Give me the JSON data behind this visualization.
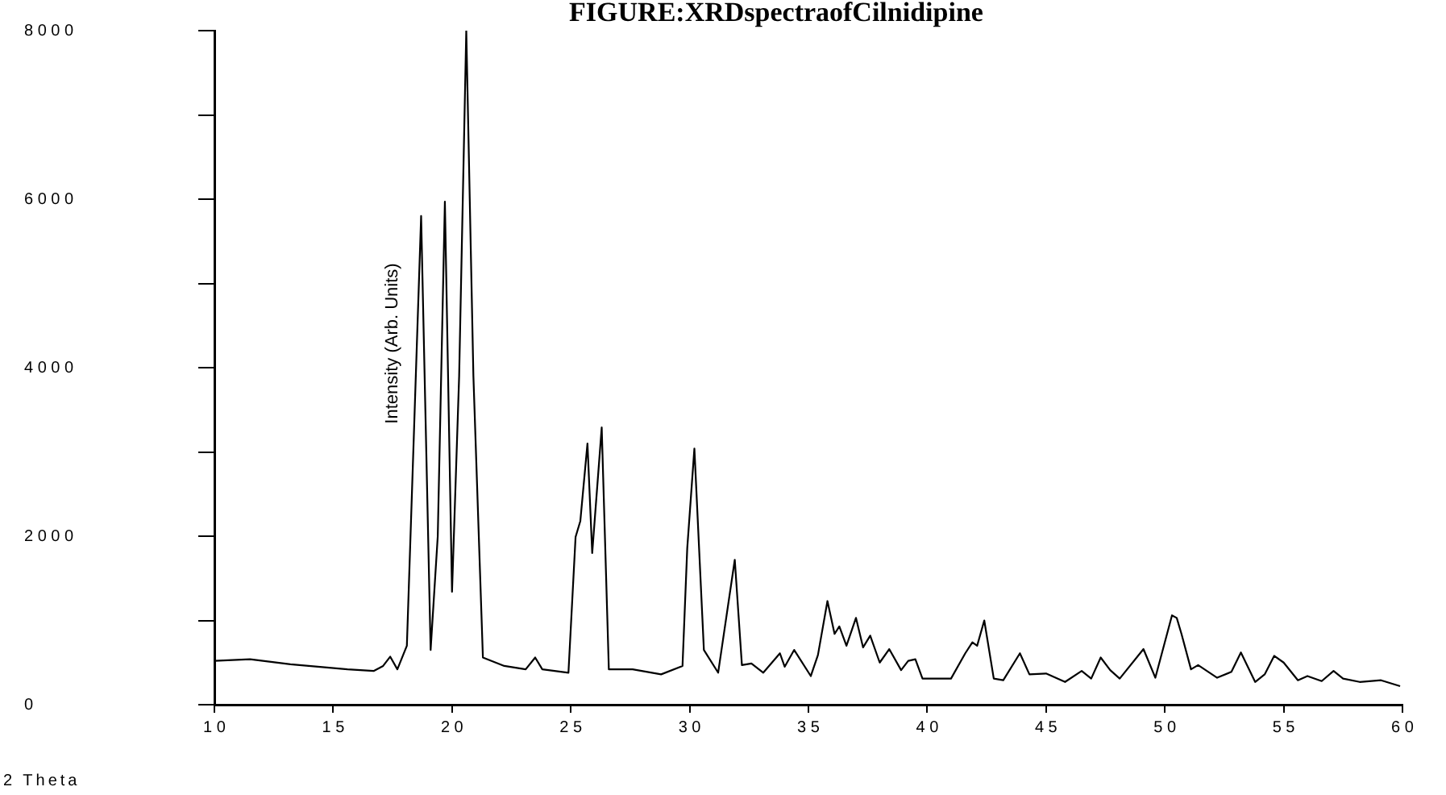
{
  "chart_data": {
    "type": "line",
    "title": "FIGURE:XRDspectraofCilnidipine",
    "xlabel": "2 Theta",
    "ylabel": "Intensity (Arb. Units)",
    "xlim": [
      10,
      60
    ],
    "xticks": [
      10,
      15,
      20,
      25,
      30,
      35,
      40,
      45,
      50,
      55,
      60
    ],
    "ylim": [
      0,
      8000
    ],
    "yticks": [
      0,
      {
        "value": 1000,
        "label": null
      },
      2000,
      {
        "value": 3000,
        "label": null
      },
      4000,
      {
        "value": 5000,
        "label": null
      },
      6000,
      {
        "value": 7000,
        "label": null
      },
      8000
    ],
    "grid": false,
    "legend": false,
    "marker": "none",
    "line_style": "solid",
    "series": [
      {
        "color": "#000000",
        "x": [
          10.0,
          11.5,
          13.2,
          15.6,
          16.7,
          17.1,
          17.4,
          17.7,
          18.1,
          18.7,
          19.1,
          19.4,
          19.7,
          20.0,
          20.3,
          20.6,
          20.9,
          21.3,
          22.2,
          23.1,
          23.5,
          23.8,
          24.9,
          25.2,
          25.4,
          25.7,
          25.9,
          26.3,
          26.6,
          27.6,
          28.8,
          29.7,
          29.9,
          30.2,
          30.6,
          31.2,
          31.9,
          32.2,
          32.6,
          33.1,
          33.8,
          34.0,
          34.4,
          35.1,
          35.4,
          35.8,
          36.1,
          36.3,
          36.6,
          37.0,
          37.3,
          37.6,
          38.0,
          38.4,
          38.9,
          39.2,
          39.5,
          39.8,
          41.0,
          41.6,
          41.9,
          42.1,
          42.4,
          42.8,
          43.2,
          43.9,
          44.3,
          45.0,
          45.8,
          46.5,
          46.9,
          47.3,
          47.7,
          48.1,
          49.1,
          49.6,
          50.3,
          50.5,
          50.7,
          51.1,
          51.4,
          52.2,
          52.8,
          53.2,
          53.8,
          54.2,
          54.6,
          55.0,
          55.6,
          56.0,
          56.6,
          57.1,
          57.5,
          58.2,
          59.1,
          59.9
        ],
        "values": [
          520,
          540,
          480,
          420,
          400,
          460,
          570,
          420,
          700,
          5800,
          650,
          2000,
          5970,
          1340,
          3900,
          8000,
          3900,
          560,
          460,
          420,
          560,
          420,
          380,
          1990,
          2180,
          3100,
          1800,
          3290,
          420,
          420,
          360,
          460,
          1860,
          3040,
          650,
          380,
          1720,
          470,
          490,
          380,
          610,
          450,
          650,
          340,
          590,
          1230,
          840,
          930,
          700,
          1030,
          680,
          820,
          500,
          660,
          410,
          520,
          540,
          310,
          310,
          610,
          740,
          700,
          1000,
          310,
          290,
          610,
          360,
          370,
          270,
          400,
          310,
          560,
          410,
          310,
          660,
          320,
          1060,
          1030,
          840,
          420,
          470,
          320,
          390,
          620,
          270,
          360,
          580,
          500,
          290,
          340,
          280,
          400,
          310,
          270,
          290,
          220
        ]
      }
    ]
  }
}
